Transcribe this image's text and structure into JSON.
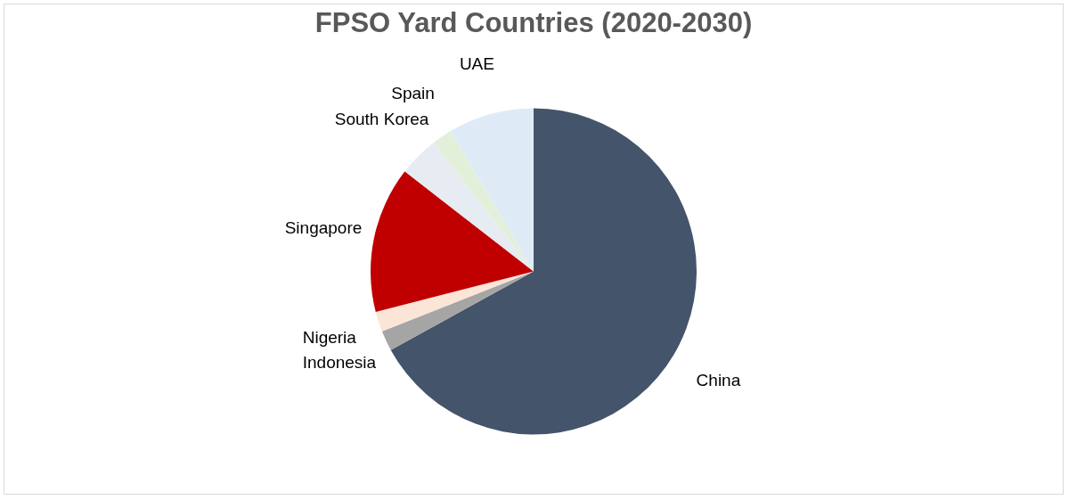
{
  "chart_data": {
    "type": "pie",
    "title": "FPSO Yard Countries (2020-2030)",
    "categories": [
      "China",
      "Indonesia",
      "Nigeria",
      "Singapore",
      "South Korea",
      "Spain",
      "UAE"
    ],
    "values": [
      67,
      2,
      2,
      14.5,
      4,
      2,
      8.5
    ],
    "colors": [
      "#44546a",
      "#a5a5a5",
      "#fbe5d6",
      "#c00000",
      "#e7ebf2",
      "#e2f0d9",
      "#deebf7"
    ],
    "legend": false
  }
}
